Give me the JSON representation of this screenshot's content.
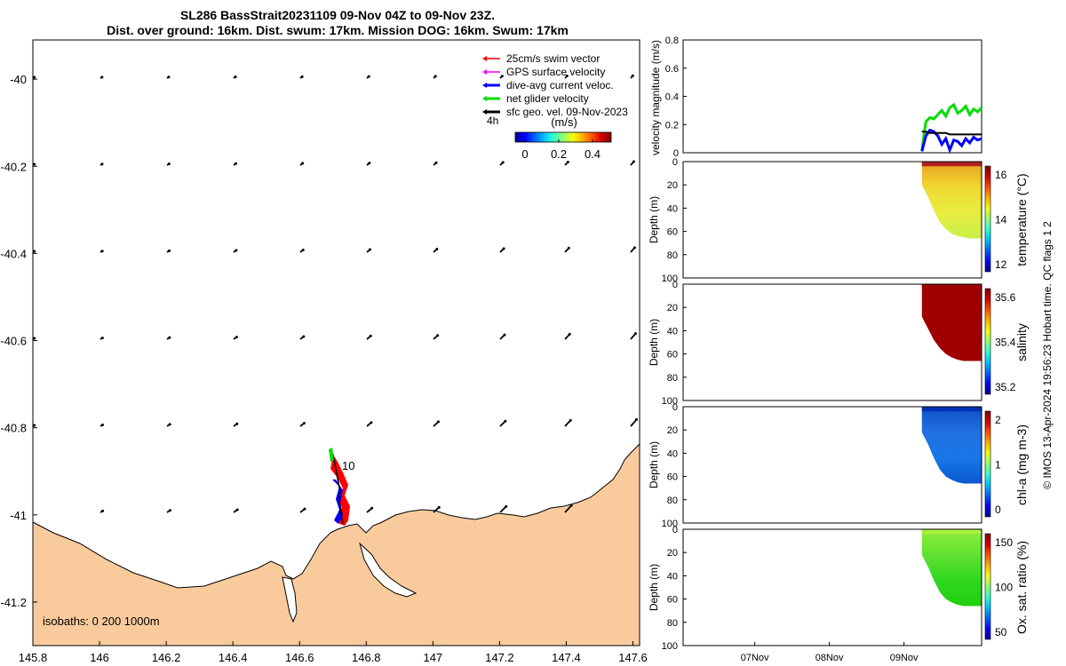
{
  "title_line1": "SL286 BassStrait20231109 09-Nov 04Z to 09-Nov 23Z.",
  "title_line2": "Dist. over ground: 16km. Dist. swum: 17km. Mission DOG: 16km. Swum: 17km",
  "colors": {
    "land": "#f9cb9c",
    "swim": "#ff0000",
    "gps": "#ff00ff",
    "dive_avg": "#0000ff",
    "net": "#00dd00",
    "geo": "#000000"
  },
  "chart_data": [
    {
      "type": "map",
      "xlim": [
        145.8,
        147.62
      ],
      "ylim": [
        -41.3,
        -39.91
      ],
      "x_ticks": [
        "145.8",
        "146",
        "146.2",
        "146.4",
        "146.6",
        "146.8",
        "147",
        "147.2",
        "147.4",
        "147.6"
      ],
      "y_ticks": [
        "-40",
        "-40.2",
        "-40.4",
        "-40.6",
        "-40.8",
        "-41",
        "-41.2"
      ],
      "legend": {
        "items": [
          "25cm/s swim vector",
          "GPS surface velocity",
          "dive-avg current veloc.",
          "net glider velocity",
          "sfc geo. vel. 09-Nov-2023"
        ],
        "time_label": "4h",
        "colorbar_label": "(m/s)",
        "colorbar_ticks": [
          "0",
          "0.2",
          "0.4"
        ]
      },
      "track_label": "10",
      "isobaths_label": "isobaths: 0   200  1000m",
      "track": [
        [
          146.7,
          -40.86
        ],
        [
          146.71,
          -40.9
        ],
        [
          146.72,
          -40.94
        ],
        [
          146.72,
          -40.98
        ],
        [
          146.73,
          -41.02
        ]
      ]
    },
    {
      "type": "line",
      "ylabel": "velocity magnitude (m/s)",
      "ylim": [
        0,
        0.8
      ],
      "y_ticks": [
        "0",
        "0.2",
        "0.4",
        "0.6",
        "0.8"
      ],
      "series": [
        {
          "color": "#00dd00",
          "values": [
            0.02,
            0.22,
            0.25,
            0.24,
            0.27,
            0.3,
            0.26,
            0.32,
            0.34,
            0.28,
            0.3,
            0.33,
            0.27,
            0.31,
            0.29,
            0.32
          ]
        },
        {
          "color": "#0000ff",
          "values": [
            0.01,
            0.12,
            0.16,
            0.15,
            0.12,
            0.06,
            0.1,
            0.02,
            0.09,
            0.08,
            0.05,
            0.1,
            0.07,
            0.11,
            0.09,
            0.1
          ]
        },
        {
          "color": "#000000",
          "values": [
            0.15,
            0.15,
            0.14,
            0.14,
            0.14,
            0.14,
            0.14,
            0.13,
            0.13,
            0.13,
            0.13,
            0.13,
            0.13,
            0.13,
            0.13,
            0.13
          ]
        }
      ]
    },
    {
      "type": "heatmap",
      "ylabel": "Depth (m)",
      "cbar_label": "temperature (°C)",
      "cbar_ticks": [
        "16",
        "14",
        "12"
      ],
      "colormap": "jet",
      "y_ticks": [
        "0",
        "20",
        "40",
        "60",
        "80",
        "100"
      ],
      "section_depth_m": [
        20,
        30,
        42,
        52,
        58,
        62,
        64,
        65,
        66,
        66,
        66
      ],
      "surface_color": "#b22222",
      "fill_colors": [
        "#e8a020",
        "#f0d830",
        "#e8ee40",
        "#c8f04a"
      ]
    },
    {
      "type": "heatmap",
      "ylabel": "Depth (m)",
      "cbar_label": "salinity",
      "cbar_ticks": [
        "35.6",
        "35.4",
        "35.2"
      ],
      "colormap": "jet",
      "y_ticks": [
        "0",
        "20",
        "40",
        "60",
        "80",
        "100"
      ],
      "section_depth_m": [
        28,
        38,
        48,
        55,
        60,
        63,
        65,
        66,
        66,
        66,
        66
      ],
      "surface_color": "#a00000",
      "fill_colors": [
        "#a00000",
        "#a00000",
        "#a00000",
        "#a00000"
      ]
    },
    {
      "type": "heatmap",
      "ylabel": "Depth (m)",
      "cbar_label": "chl-a (mg m-3)",
      "cbar_ticks": [
        "2",
        "1",
        "0"
      ],
      "colormap": "jet",
      "y_ticks": [
        "0",
        "20",
        "40",
        "60",
        "80",
        "100"
      ],
      "section_depth_m": [
        22,
        32,
        44,
        54,
        60,
        63,
        65,
        66,
        66,
        66,
        66
      ],
      "surface_color": "#0030b0",
      "fill_colors": [
        "#1050c8",
        "#2070e0",
        "#1878e8",
        "#0a58d0"
      ]
    },
    {
      "type": "heatmap",
      "ylabel": "Depth (m)",
      "cbar_label": "Ox. sat. ratio (%)",
      "cbar_ticks": [
        "150",
        "100",
        "50"
      ],
      "colormap": "jet",
      "y_ticks": [
        "0",
        "20",
        "40",
        "60",
        "80",
        "100"
      ],
      "x_ticks": [
        "07Nov",
        "08Nov",
        "09Nov"
      ],
      "section_depth_m": [
        22,
        32,
        44,
        54,
        60,
        63,
        65,
        66,
        66,
        66,
        66
      ],
      "surface_color": "#a8f040",
      "fill_colors": [
        "#90ee3a",
        "#60e030",
        "#30d820",
        "#20d010"
      ]
    }
  ],
  "side_note": "© IMOS 13-Apr-2024 19:56:23 Hobart time. QC flags 1  2"
}
